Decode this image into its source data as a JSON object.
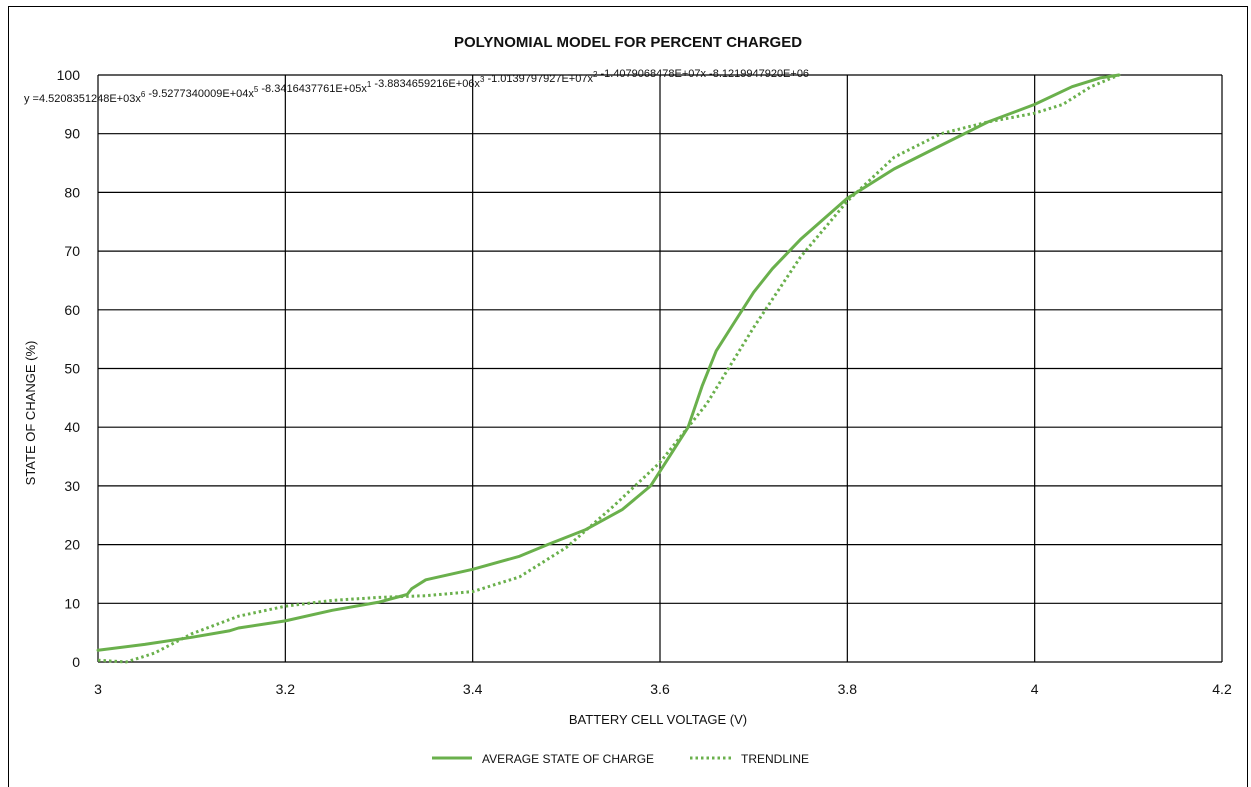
{
  "chart_data": {
    "type": "line",
    "title": "POLYNOMIAL MODEL FOR PERCENT CHARGED",
    "xlabel": "BATTERY CELL VOLTAGE (V)",
    "ylabel": "STATE OF CHANGE (%)",
    "xlim": [
      3,
      4.2
    ],
    "ylim": [
      0,
      100
    ],
    "x_ticks": [
      "3",
      "3.2",
      "3.4",
      "3.6",
      "3.8",
      "4",
      "4.2"
    ],
    "y_ticks": [
      "0",
      "10",
      "20",
      "30",
      "40",
      "50",
      "60",
      "70",
      "80",
      "90",
      "100"
    ],
    "grid": true,
    "legend_position": "bottom",
    "series_color": "#6ab04c",
    "equation": {
      "prefix": "y =",
      "terms": [
        {
          "coef": "4.5208351248E+03x",
          "exp": "6"
        },
        {
          "coef": " -9.5277340009E+04x",
          "exp": "5"
        },
        {
          "coef": " -8.3416437761E+05x",
          "exp": "1"
        },
        {
          "coef": " -3.8834659216E+06x",
          "exp": "3"
        },
        {
          "coef": " -1.0139797927E+07x",
          "exp": "2"
        },
        {
          "coef": " -1.4079068478E+07x -8.1219947920E+06",
          "exp": ""
        }
      ]
    },
    "series": [
      {
        "name": "AVERAGE STATE OF CHARGE",
        "style": "solid",
        "points": [
          [
            3.0,
            2.0
          ],
          [
            3.05,
            3.0
          ],
          [
            3.1,
            4.2
          ],
          [
            3.14,
            5.3
          ],
          [
            3.15,
            5.8
          ],
          [
            3.2,
            7.0
          ],
          [
            3.25,
            8.8
          ],
          [
            3.3,
            10.2
          ],
          [
            3.33,
            11.5
          ],
          [
            3.335,
            12.5
          ],
          [
            3.35,
            14.0
          ],
          [
            3.4,
            15.8
          ],
          [
            3.45,
            18.0
          ],
          [
            3.48,
            20.0
          ],
          [
            3.52,
            22.5
          ],
          [
            3.56,
            26.0
          ],
          [
            3.59,
            30.0
          ],
          [
            3.61,
            35.0
          ],
          [
            3.63,
            40.0
          ],
          [
            3.645,
            47.0
          ],
          [
            3.66,
            53.0
          ],
          [
            3.68,
            58.0
          ],
          [
            3.7,
            63.0
          ],
          [
            3.72,
            67.0
          ],
          [
            3.75,
            72.0
          ],
          [
            3.8,
            79.0
          ],
          [
            3.85,
            84.0
          ],
          [
            3.9,
            88.0
          ],
          [
            3.95,
            92.0
          ],
          [
            4.0,
            95.0
          ],
          [
            4.04,
            98.0
          ],
          [
            4.07,
            99.5
          ],
          [
            4.09,
            100.0
          ]
        ]
      },
      {
        "name": "TRENDLINE",
        "style": "dotted",
        "points": [
          [
            3.0,
            0.3
          ],
          [
            3.03,
            0.0
          ],
          [
            3.06,
            1.5
          ],
          [
            3.1,
            4.8
          ],
          [
            3.15,
            7.8
          ],
          [
            3.2,
            9.5
          ],
          [
            3.25,
            10.5
          ],
          [
            3.3,
            11.0
          ],
          [
            3.35,
            11.3
          ],
          [
            3.4,
            12.0
          ],
          [
            3.45,
            14.5
          ],
          [
            3.5,
            19.5
          ],
          [
            3.55,
            26.5
          ],
          [
            3.6,
            34.0
          ],
          [
            3.65,
            44.0
          ],
          [
            3.7,
            57.0
          ],
          [
            3.75,
            69.0
          ],
          [
            3.8,
            78.5
          ],
          [
            3.85,
            86.0
          ],
          [
            3.9,
            90.0
          ],
          [
            3.95,
            92.0
          ],
          [
            4.0,
            93.5
          ],
          [
            4.03,
            95.0
          ],
          [
            4.06,
            98.0
          ],
          [
            4.09,
            100.0
          ]
        ]
      }
    ]
  }
}
